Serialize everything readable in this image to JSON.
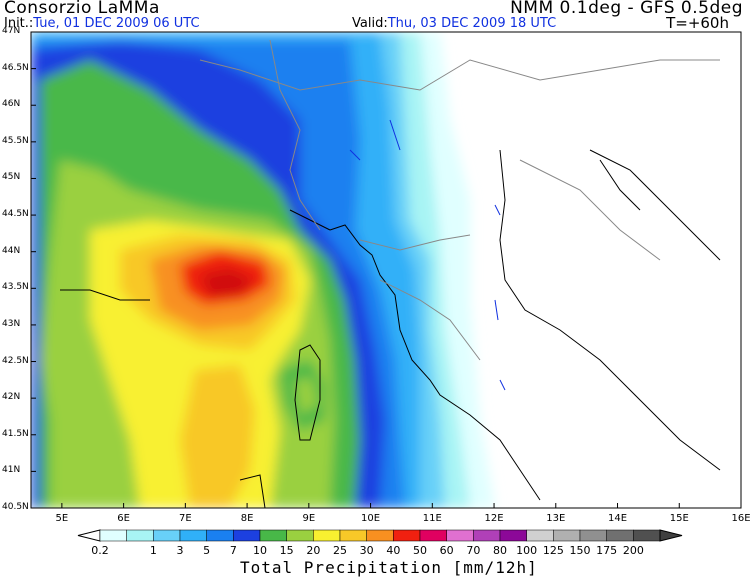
{
  "header": {
    "producer": "Consorzio LaMMa",
    "model": "NMM 0.1deg - GFS 0.5deg",
    "init_label": "Init.:",
    "init_value": "Tue, 01 DEC 2009  06 UTC",
    "valid_label": "Valid:",
    "valid_value": "Thu, 03 DEC 2009  18 UTC",
    "forecast_step": "T=+60h"
  },
  "map": {
    "lat_labels": [
      "47N",
      "46.5N",
      "46N",
      "45.5N",
      "45N",
      "44.5N",
      "44N",
      "43.5N",
      "43N",
      "42.5N",
      "42N",
      "41.5N",
      "41N",
      "40.5N"
    ],
    "lon_labels": [
      "5E",
      "6E",
      "7E",
      "8E",
      "9E",
      "10E",
      "11E",
      "12E",
      "13E",
      "14E",
      "15E",
      "16E"
    ],
    "lat_range": [
      40.5,
      47.0
    ],
    "lon_range": [
      4.5,
      16.0
    ]
  },
  "colorbar": {
    "title": "Total Precipitation [mm/12h]",
    "ticks": [
      "0.2",
      "1",
      "3",
      "5",
      "7",
      "10",
      "15",
      "20",
      "25",
      "30",
      "40",
      "50",
      "60",
      "70",
      "80",
      "100",
      "125",
      "150",
      "175",
      "200"
    ],
    "colors": [
      "#e0ffff",
      "#a8f4f4",
      "#68d0f8",
      "#30b0f8",
      "#1a80f0",
      "#1c40e0",
      "#48b848",
      "#9ad040",
      "#f8f030",
      "#f8c828",
      "#f89020",
      "#f02010",
      "#e00060",
      "#e070d0",
      "#b040b8",
      "#8c0898",
      "#d0d0d0",
      "#b0b0b0",
      "#909090",
      "#707070",
      "#505050"
    ]
  }
}
